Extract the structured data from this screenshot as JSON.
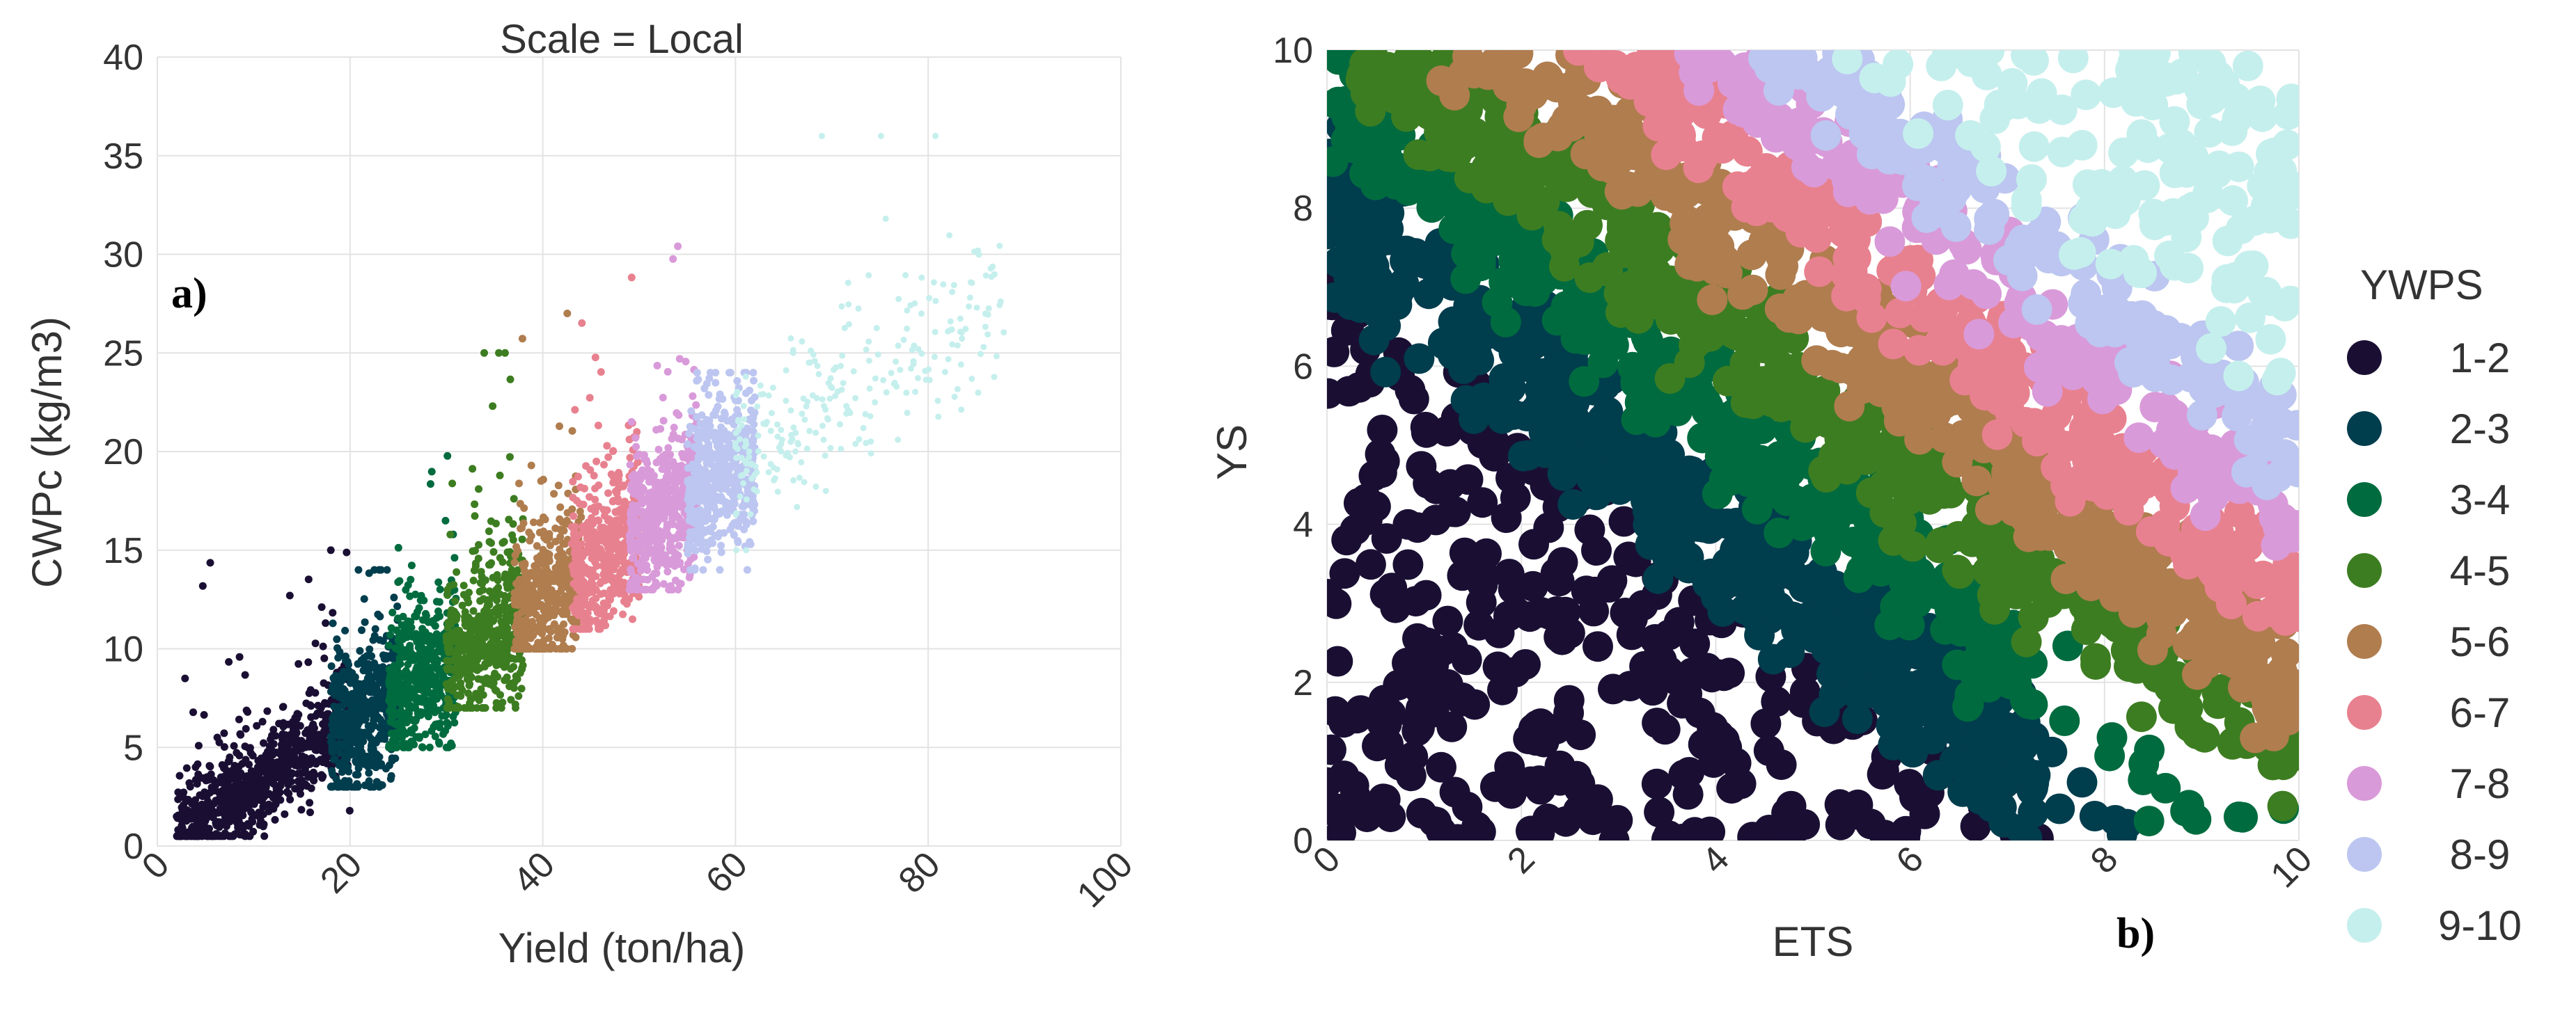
{
  "figure": {
    "panel_a_tag": "a)",
    "panel_b_tag": "b)"
  },
  "legend": {
    "title": "YWPS",
    "entries": [
      {
        "label": "1-2",
        "color": "#1a0f33"
      },
      {
        "label": "2-3",
        "color": "#003d4d"
      },
      {
        "label": "3-4",
        "color": "#006b3f"
      },
      {
        "label": "4-5",
        "color": "#3d7d21"
      },
      {
        "label": "5-6",
        "color": "#b07d4f"
      },
      {
        "label": "6-7",
        "color": "#e8818f"
      },
      {
        "label": "7-8",
        "color": "#d99ad9"
      },
      {
        "label": "8-9",
        "color": "#bcc6f0"
      },
      {
        "label": "9-10",
        "color": "#c5efed"
      }
    ]
  },
  "chart_data": [
    {
      "type": "scatter",
      "title": "Scale = Local",
      "xlabel": "Yield (ton/ha)",
      "ylabel": "CWPc (kg/m3)",
      "xlim": [
        0,
        100
      ],
      "ylim": [
        0,
        40
      ],
      "xticks": [
        "0",
        "20",
        "40",
        "60",
        "80",
        "100"
      ],
      "yticks": [
        "0",
        "5",
        "10",
        "15",
        "20",
        "25",
        "30",
        "35",
        "40"
      ],
      "grid": true,
      "description": "Points colored by YWPS class; CWPc rises roughly linearly with Yield (about 0.32 kg/m3 per ton/ha), class bands occupy successive Yield ranges",
      "series": [
        {
          "name": "1-2",
          "yield_range": [
            2,
            20
          ],
          "cwpc_range": [
            0.5,
            15
          ]
        },
        {
          "name": "2-3",
          "yield_range": [
            18,
            25
          ],
          "cwpc_range": [
            3,
            14
          ]
        },
        {
          "name": "3-4",
          "yield_range": [
            24,
            31
          ],
          "cwpc_range": [
            5,
            24
          ]
        },
        {
          "name": "4-5",
          "yield_range": [
            30,
            38
          ],
          "cwpc_range": [
            7,
            25
          ]
        },
        {
          "name": "5-6",
          "yield_range": [
            37,
            44
          ],
          "cwpc_range": [
            10,
            27
          ]
        },
        {
          "name": "6-7",
          "yield_range": [
            43,
            50
          ],
          "cwpc_range": [
            11,
            34
          ]
        },
        {
          "name": "7-8",
          "yield_range": [
            49,
            56
          ],
          "cwpc_range": [
            13,
            34
          ]
        },
        {
          "name": "8-9",
          "yield_range": [
            55,
            62
          ],
          "cwpc_range": [
            14,
            24
          ]
        },
        {
          "name": "9-10",
          "yield_range": [
            60,
            88
          ],
          "cwpc_range": [
            15,
            36
          ]
        }
      ]
    },
    {
      "type": "scatter",
      "title": "",
      "xlabel": "ETS",
      "ylabel": "YS",
      "xlim": [
        0,
        10
      ],
      "ylim": [
        0,
        10
      ],
      "xticks": [
        "0",
        "2",
        "4",
        "6",
        "8",
        "10"
      ],
      "yticks": [
        "0",
        "2",
        "4",
        "6",
        "8",
        "10"
      ],
      "grid": true,
      "description": "Dense scatter of YS vs ETS colored by YWPS class; classes form diagonal bands with YWPS approximately (ETS + YS) - 5",
      "series": [
        {
          "name": "1-2",
          "band_sum": [
            0,
            7.2
          ]
        },
        {
          "name": "2-3",
          "band_sum": [
            7.2,
            8.8
          ]
        },
        {
          "name": "3-4",
          "band_sum": [
            8.8,
            10
          ]
        },
        {
          "name": "4-5",
          "band_sum": [
            10,
            11.2
          ]
        },
        {
          "name": "5-6",
          "band_sum": [
            11.2,
            12.4
          ]
        },
        {
          "name": "6-7",
          "band_sum": [
            12.4,
            13.5
          ]
        },
        {
          "name": "7-8",
          "band_sum": [
            13.5,
            14.4
          ]
        },
        {
          "name": "8-9",
          "band_sum": [
            14.4,
            15.3
          ]
        },
        {
          "name": "9-10",
          "band_sum": [
            15.3,
            20
          ]
        }
      ]
    }
  ]
}
